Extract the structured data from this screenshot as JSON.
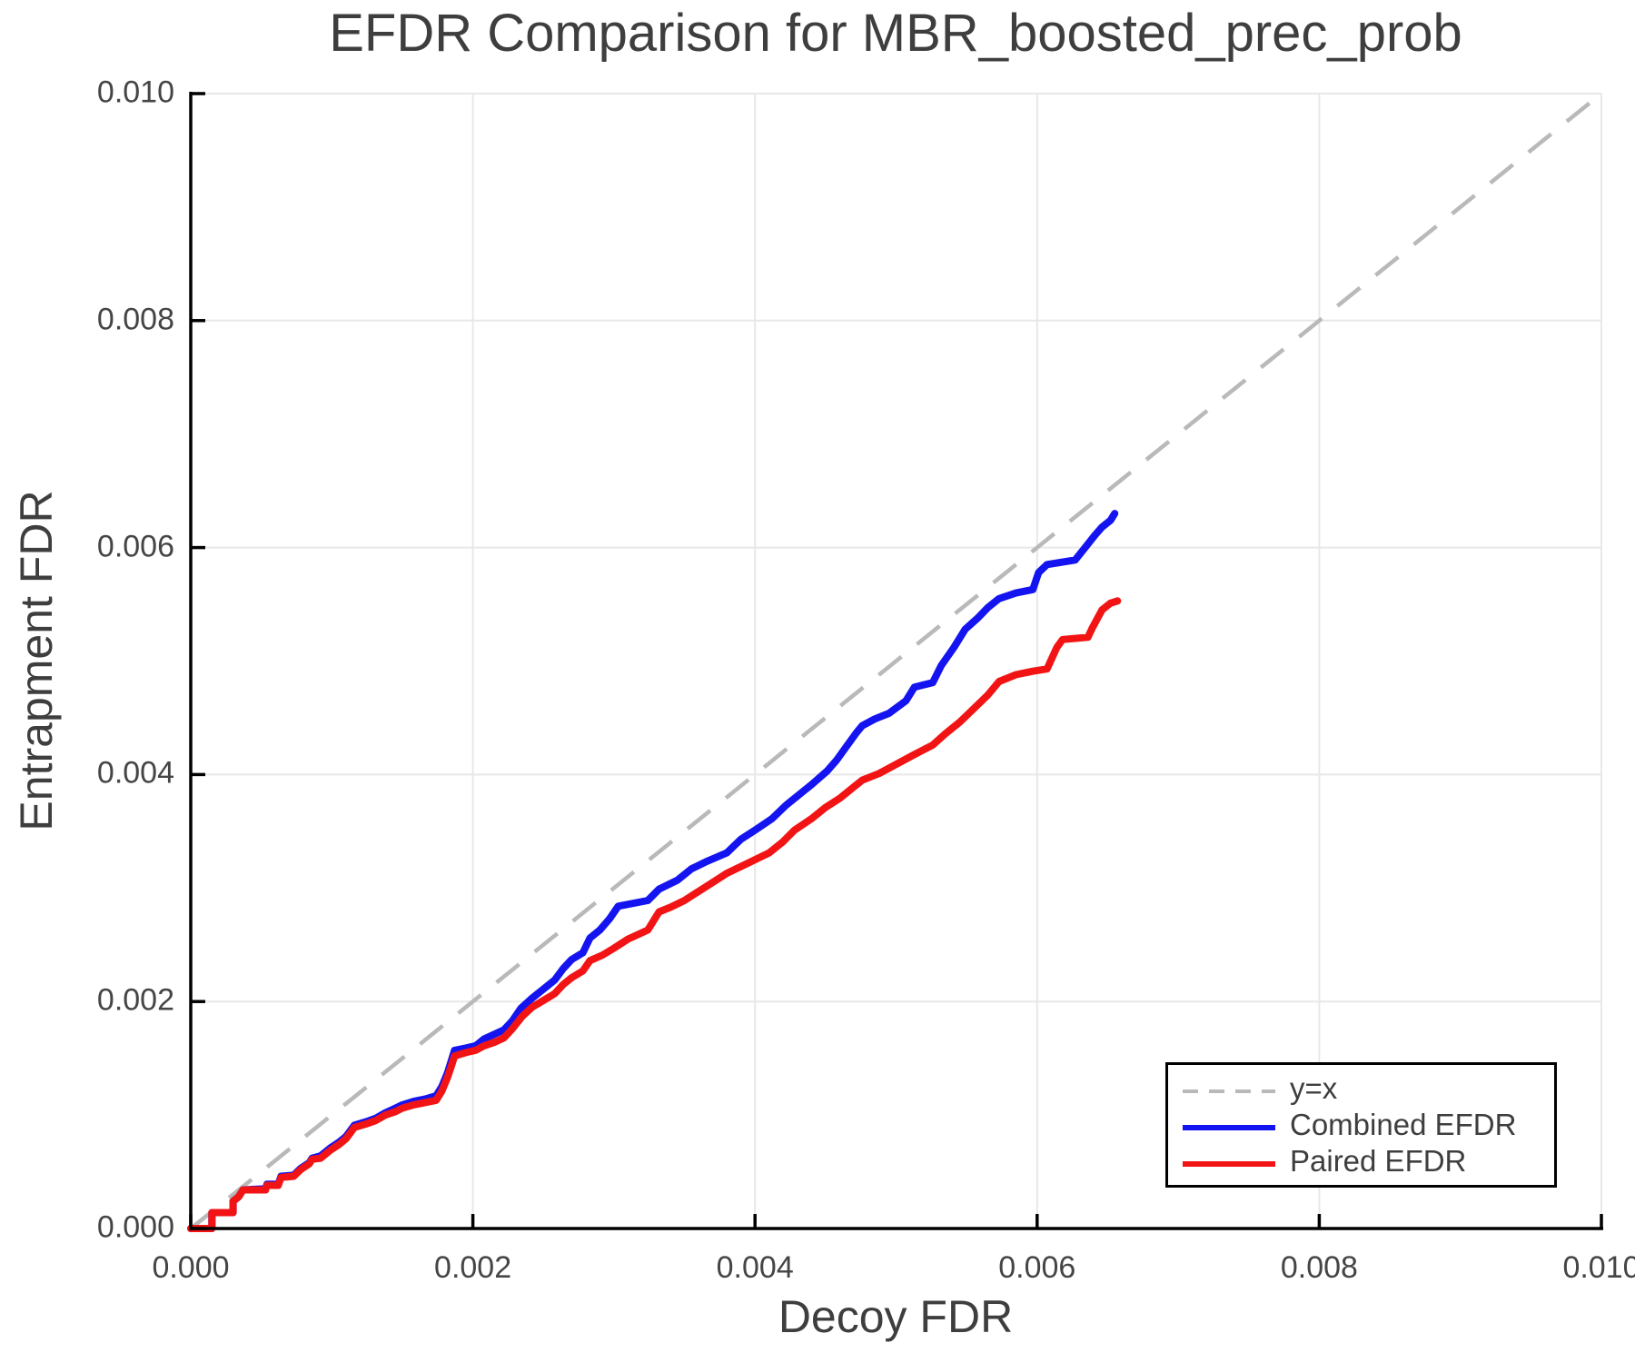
{
  "chart_data": {
    "type": "line",
    "title": "EFDR Comparison for MBR_boosted_prec_prob",
    "xlabel": "Decoy FDR",
    "ylabel": "Entrapment FDR",
    "xlim": [
      0.0,
      0.01
    ],
    "ylim": [
      0.0,
      0.01
    ],
    "grid": true,
    "grid_color": "#e8e8e8",
    "spine_color": "#000000",
    "xticks": {
      "values": [
        0.0,
        0.002,
        0.004,
        0.006,
        0.008,
        0.01
      ],
      "labels": [
        "0.000",
        "0.002",
        "0.004",
        "0.006",
        "0.008",
        "0.010"
      ]
    },
    "yticks": {
      "values": [
        0.0,
        0.002,
        0.004,
        0.006,
        0.008,
        0.01
      ],
      "labels": [
        "0.000",
        "0.002",
        "0.004",
        "0.006",
        "0.008",
        "0.010"
      ]
    },
    "legend": {
      "position": "lower right",
      "items": [
        {
          "label": "y=x",
          "color": "#b9b9b9",
          "dashed": true
        },
        {
          "label": "Combined EFDR",
          "color": "#1414f0",
          "dashed": false
        },
        {
          "label": "Paired EFDR",
          "color": "#f21414",
          "dashed": false
        }
      ]
    },
    "reference_line": {
      "label": "y=x",
      "style": "dashed",
      "color": "#b9b9b9",
      "from": [
        0.0,
        0.0
      ],
      "to": [
        0.01,
        0.01
      ]
    },
    "series": [
      {
        "name": "Combined EFDR",
        "color": "#1414f0",
        "points": [
          [
            0.0,
            0.0
          ],
          [
            0.00015,
            0.0
          ],
          [
            0.00015,
            0.00014
          ],
          [
            0.0003,
            0.00014
          ],
          [
            0.0003,
            0.00024
          ],
          [
            0.00034,
            0.00028
          ],
          [
            0.00037,
            0.00034
          ],
          [
            0.00053,
            0.00035
          ],
          [
            0.00054,
            0.00039
          ],
          [
            0.00062,
            0.00039
          ],
          [
            0.00064,
            0.00046
          ],
          [
            0.00073,
            0.00047
          ],
          [
            0.00078,
            0.00053
          ],
          [
            0.00084,
            0.00058
          ],
          [
            0.00086,
            0.00062
          ],
          [
            0.00092,
            0.00064
          ],
          [
            0.00096,
            0.00068
          ],
          [
            0.00099,
            0.00071
          ],
          [
            0.00105,
            0.00076
          ],
          [
            0.0011,
            0.00081
          ],
          [
            0.00113,
            0.00086
          ],
          [
            0.00116,
            0.00091
          ],
          [
            0.00124,
            0.00094
          ],
          [
            0.00131,
            0.00097
          ],
          [
            0.00138,
            0.00102
          ],
          [
            0.00145,
            0.00106
          ],
          [
            0.0015,
            0.00109
          ],
          [
            0.00158,
            0.00112
          ],
          [
            0.00166,
            0.00114
          ],
          [
            0.00174,
            0.00117
          ],
          [
            0.00178,
            0.00125
          ],
          [
            0.00182,
            0.00137
          ],
          [
            0.00185,
            0.00149
          ],
          [
            0.00187,
            0.00157
          ],
          [
            0.00195,
            0.00159
          ],
          [
            0.00202,
            0.00161
          ],
          [
            0.00208,
            0.00167
          ],
          [
            0.00215,
            0.00171
          ],
          [
            0.00222,
            0.00175
          ],
          [
            0.00228,
            0.00183
          ],
          [
            0.00234,
            0.00194
          ],
          [
            0.00242,
            0.00203
          ],
          [
            0.0025,
            0.00211
          ],
          [
            0.00258,
            0.00219
          ],
          [
            0.00264,
            0.00229
          ],
          [
            0.0027,
            0.00237
          ],
          [
            0.00278,
            0.00243
          ],
          [
            0.00283,
            0.00256
          ],
          [
            0.0029,
            0.00263
          ],
          [
            0.00297,
            0.00273
          ],
          [
            0.00303,
            0.00284
          ],
          [
            0.00324,
            0.00289
          ],
          [
            0.00332,
            0.00299
          ],
          [
            0.00345,
            0.00307
          ],
          [
            0.00355,
            0.00317
          ],
          [
            0.00365,
            0.00323
          ],
          [
            0.0038,
            0.00331
          ],
          [
            0.0039,
            0.00343
          ],
          [
            0.004,
            0.00351
          ],
          [
            0.00412,
            0.00361
          ],
          [
            0.00422,
            0.00373
          ],
          [
            0.00428,
            0.00379
          ],
          [
            0.0044,
            0.00391
          ],
          [
            0.00451,
            0.00403
          ],
          [
            0.00458,
            0.00413
          ],
          [
            0.00465,
            0.00425
          ],
          [
            0.00472,
            0.00437
          ],
          [
            0.00476,
            0.00443
          ],
          [
            0.00485,
            0.00449
          ],
          [
            0.00495,
            0.00454
          ],
          [
            0.00507,
            0.00465
          ],
          [
            0.00513,
            0.00477
          ],
          [
            0.00526,
            0.00481
          ],
          [
            0.00532,
            0.00496
          ],
          [
            0.00541,
            0.00512
          ],
          [
            0.00549,
            0.00528
          ],
          [
            0.00558,
            0.00538
          ],
          [
            0.00565,
            0.00547
          ],
          [
            0.00573,
            0.00555
          ],
          [
            0.00585,
            0.0056
          ],
          [
            0.00597,
            0.00563
          ],
          [
            0.00601,
            0.00578
          ],
          [
            0.00607,
            0.00585
          ],
          [
            0.00627,
            0.00589
          ],
          [
            0.00634,
            0.006
          ],
          [
            0.00641,
            0.00611
          ],
          [
            0.00646,
            0.00618
          ],
          [
            0.00652,
            0.00624
          ],
          [
            0.00655,
            0.0063
          ]
        ]
      },
      {
        "name": "Paired EFDR",
        "color": "#f21414",
        "points": [
          [
            0.0,
            0.0
          ],
          [
            0.00015,
            0.0
          ],
          [
            0.00015,
            0.00014
          ],
          [
            0.0003,
            0.00014
          ],
          [
            0.0003,
            0.00024
          ],
          [
            0.00034,
            0.00028
          ],
          [
            0.00037,
            0.00034
          ],
          [
            0.00053,
            0.00034
          ],
          [
            0.00054,
            0.00038
          ],
          [
            0.00062,
            0.00038
          ],
          [
            0.00064,
            0.00045
          ],
          [
            0.00073,
            0.00046
          ],
          [
            0.00078,
            0.00052
          ],
          [
            0.00084,
            0.00057
          ],
          [
            0.00086,
            0.00061
          ],
          [
            0.00092,
            0.00062
          ],
          [
            0.00096,
            0.00066
          ],
          [
            0.00099,
            0.00069
          ],
          [
            0.00105,
            0.00074
          ],
          [
            0.0011,
            0.00079
          ],
          [
            0.00113,
            0.00084
          ],
          [
            0.00116,
            0.00089
          ],
          [
            0.00124,
            0.00092
          ],
          [
            0.00131,
            0.00095
          ],
          [
            0.00138,
            0.001
          ],
          [
            0.00145,
            0.00103
          ],
          [
            0.0015,
            0.00106
          ],
          [
            0.00158,
            0.00109
          ],
          [
            0.00166,
            0.00111
          ],
          [
            0.00174,
            0.00113
          ],
          [
            0.00178,
            0.00121
          ],
          [
            0.00182,
            0.00133
          ],
          [
            0.00185,
            0.00144
          ],
          [
            0.00187,
            0.00152
          ],
          [
            0.00195,
            0.00155
          ],
          [
            0.00202,
            0.00157
          ],
          [
            0.00208,
            0.00161
          ],
          [
            0.00215,
            0.00164
          ],
          [
            0.00222,
            0.00168
          ],
          [
            0.00228,
            0.00176
          ],
          [
            0.00235,
            0.00187
          ],
          [
            0.00242,
            0.00195
          ],
          [
            0.0025,
            0.00201
          ],
          [
            0.00258,
            0.00207
          ],
          [
            0.00264,
            0.00215
          ],
          [
            0.0027,
            0.00221
          ],
          [
            0.00278,
            0.00227
          ],
          [
            0.00283,
            0.00236
          ],
          [
            0.00292,
            0.00241
          ],
          [
            0.003,
            0.00247
          ],
          [
            0.0031,
            0.00255
          ],
          [
            0.00324,
            0.00263
          ],
          [
            0.00328,
            0.00271
          ],
          [
            0.00332,
            0.00279
          ],
          [
            0.0034,
            0.00283
          ],
          [
            0.0035,
            0.00289
          ],
          [
            0.0036,
            0.00297
          ],
          [
            0.0037,
            0.00305
          ],
          [
            0.0038,
            0.00313
          ],
          [
            0.0039,
            0.00319
          ],
          [
            0.004,
            0.00325
          ],
          [
            0.0041,
            0.00331
          ],
          [
            0.0042,
            0.00341
          ],
          [
            0.00428,
            0.00351
          ],
          [
            0.0044,
            0.00361
          ],
          [
            0.0045,
            0.00371
          ],
          [
            0.0046,
            0.00379
          ],
          [
            0.00468,
            0.00387
          ],
          [
            0.00476,
            0.00395
          ],
          [
            0.00488,
            0.00401
          ],
          [
            0.005,
            0.00409
          ],
          [
            0.00512,
            0.00417
          ],
          [
            0.00526,
            0.00426
          ],
          [
            0.00535,
            0.00436
          ],
          [
            0.00545,
            0.00446
          ],
          [
            0.00555,
            0.00458
          ],
          [
            0.00565,
            0.0047
          ],
          [
            0.00573,
            0.00482
          ],
          [
            0.00585,
            0.00488
          ],
          [
            0.00597,
            0.00491
          ],
          [
            0.00607,
            0.00493
          ],
          [
            0.00614,
            0.00512
          ],
          [
            0.00618,
            0.00519
          ],
          [
            0.00636,
            0.00521
          ],
          [
            0.00639,
            0.00529
          ],
          [
            0.00646,
            0.00545
          ],
          [
            0.00652,
            0.00551
          ],
          [
            0.00657,
            0.00553
          ]
        ]
      }
    ]
  }
}
